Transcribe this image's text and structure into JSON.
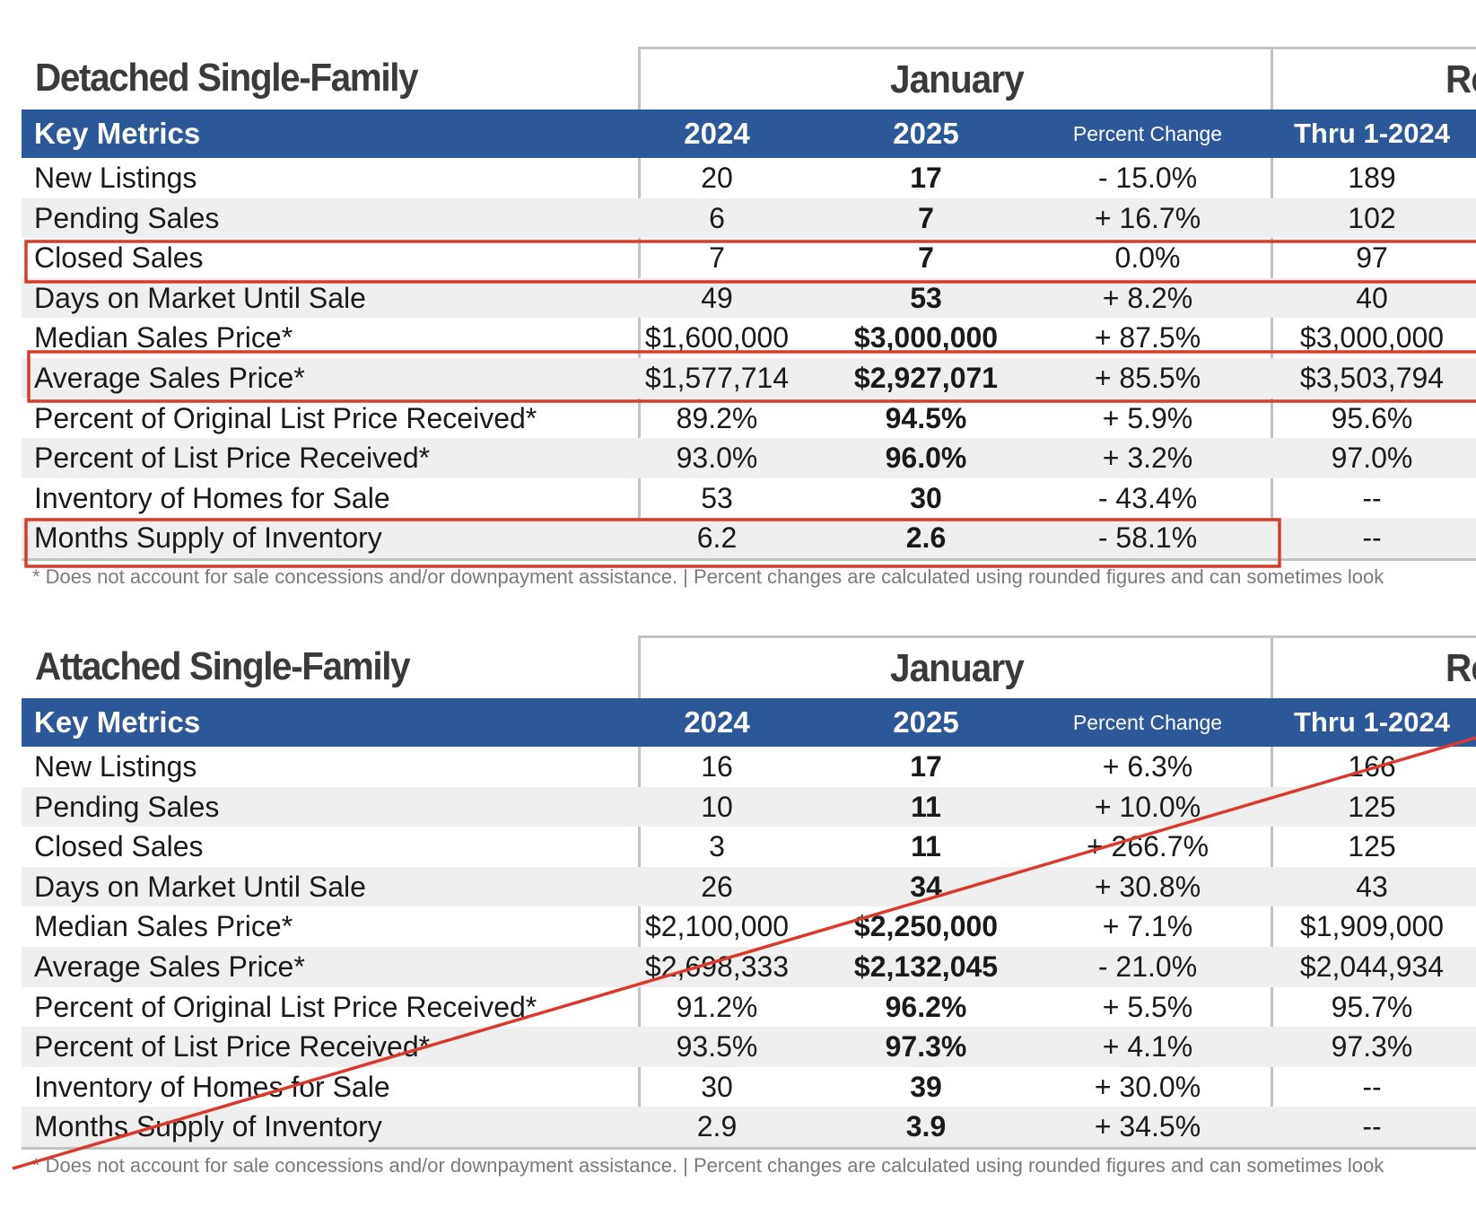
{
  "annotation_color": "#d93a2e",
  "header_color": "#2a5898",
  "sections": [
    {
      "title": "Detached Single-Family",
      "period_main": "January",
      "period_ytd": "Re",
      "headers": {
        "key": "Key Metrics",
        "year1": "2024",
        "year2": "2025",
        "pct": "Percent Change",
        "ytd": "Thru 1-2024"
      },
      "rows": [
        {
          "label": "New Listings",
          "y2024": "20",
          "y2025": "17",
          "pct": "- 15.0%",
          "ytd": "189"
        },
        {
          "label": "Pending Sales",
          "y2024": "6",
          "y2025": "7",
          "pct": "+ 16.7%",
          "ytd": "102"
        },
        {
          "label": "Closed Sales",
          "y2024": "7",
          "y2025": "7",
          "pct": "0.0%",
          "ytd": "97"
        },
        {
          "label": "Days on Market Until Sale",
          "y2024": "49",
          "y2025": "53",
          "pct": "+ 8.2%",
          "ytd": "40"
        },
        {
          "label": "Median Sales Price*",
          "y2024": "$1,600,000",
          "y2025": "$3,000,000",
          "pct": "+ 87.5%",
          "ytd": "$3,000,000"
        },
        {
          "label": "Average Sales Price*",
          "y2024": "$1,577,714",
          "y2025": "$2,927,071",
          "pct": "+ 85.5%",
          "ytd": "$3,503,794"
        },
        {
          "label": "Percent of Original List Price Received*",
          "y2024": "89.2%",
          "y2025": "94.5%",
          "pct": "+ 5.9%",
          "ytd": "95.6%"
        },
        {
          "label": "Percent of List Price Received*",
          "y2024": "93.0%",
          "y2025": "96.0%",
          "pct": "+ 3.2%",
          "ytd": "97.0%"
        },
        {
          "label": "Inventory of Homes for Sale",
          "y2024": "53",
          "y2025": "30",
          "pct": "- 43.4%",
          "ytd": "--"
        },
        {
          "label": "Months Supply of Inventory",
          "y2024": "6.2",
          "y2025": "2.6",
          "pct": "- 58.1%",
          "ytd": "--"
        }
      ],
      "footnote": "* Does not account for sale concessions and/or downpayment assistance.  |  Percent changes are calculated using rounded figures and can sometimes look"
    },
    {
      "title": "Attached Single-Family",
      "period_main": "January",
      "period_ytd": "Re",
      "headers": {
        "key": "Key Metrics",
        "year1": "2024",
        "year2": "2025",
        "pct": "Percent Change",
        "ytd": "Thru 1-2024"
      },
      "rows": [
        {
          "label": "New Listings",
          "y2024": "16",
          "y2025": "17",
          "pct": "+ 6.3%",
          "ytd": "166"
        },
        {
          "label": "Pending Sales",
          "y2024": "10",
          "y2025": "11",
          "pct": "+ 10.0%",
          "ytd": "125"
        },
        {
          "label": "Closed Sales",
          "y2024": "3",
          "y2025": "11",
          "pct": "+ 266.7%",
          "ytd": "125"
        },
        {
          "label": "Days on Market Until Sale",
          "y2024": "26",
          "y2025": "34",
          "pct": "+ 30.8%",
          "ytd": "43"
        },
        {
          "label": "Median Sales Price*",
          "y2024": "$2,100,000",
          "y2025": "$2,250,000",
          "pct": "+ 7.1%",
          "ytd": "$1,909,000"
        },
        {
          "label": "Average Sales Price*",
          "y2024": "$2,698,333",
          "y2025": "$2,132,045",
          "pct": "- 21.0%",
          "ytd": "$2,044,934"
        },
        {
          "label": "Percent of Original List Price Received*",
          "y2024": "91.2%",
          "y2025": "96.2%",
          "pct": "+ 5.5%",
          "ytd": "95.7%"
        },
        {
          "label": "Percent of List Price Received*",
          "y2024": "93.5%",
          "y2025": "97.3%",
          "pct": "+ 4.1%",
          "ytd": "97.3%"
        },
        {
          "label": "Inventory of Homes for Sale",
          "y2024": "30",
          "y2025": "39",
          "pct": "+ 30.0%",
          "ytd": "--"
        },
        {
          "label": "Months Supply of Inventory",
          "y2024": "2.9",
          "y2025": "3.9",
          "pct": "+ 34.5%",
          "ytd": "--"
        }
      ],
      "footnote": "* Does not account for sale concessions and/or downpayment assistance.  |  Percent changes are calculated using rounded figures and can sometimes look"
    }
  ]
}
